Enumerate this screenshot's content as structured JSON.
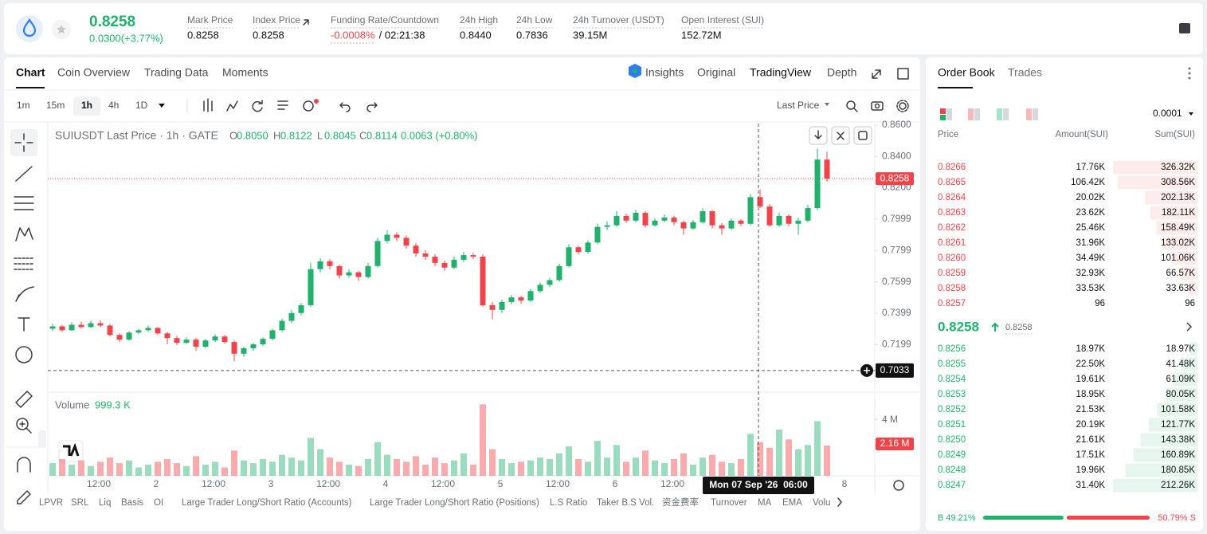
{
  "header": {
    "price": "0.8258",
    "change": "0.0300(+3.77%)",
    "stats": [
      {
        "label": "Mark Price",
        "value": "0.8258"
      },
      {
        "label": "Index Price",
        "value": "0.8258"
      },
      {
        "label": "Funding Rate/Countdown",
        "value": "-0.0008%",
        "extra": "/ 02:21:38"
      },
      {
        "label": "24h High",
        "value": "0.8440"
      },
      {
        "label": "24h Low",
        "value": "0.7836"
      },
      {
        "label": "24h Turnover (USDT)",
        "value": "39.15M"
      },
      {
        "label": "Open Interest (SUI)",
        "value": "152.72M"
      }
    ]
  },
  "tabs": [
    "Chart",
    "Coin Overview",
    "Trading Data",
    "Moments"
  ],
  "view_tabs": [
    "Insights",
    "Original",
    "TradingView",
    "Depth"
  ],
  "intervals": [
    "1m",
    "15m",
    "1h",
    "4h",
    "1D"
  ],
  "price_type": "Last Price",
  "chart_data": {
    "type": "candlestick",
    "title": "SUIUSDT Last Price · 1h · GATE",
    "legend_ohlc": [
      [
        "O",
        "0.8050"
      ],
      [
        "H",
        "0.8122"
      ],
      [
        "L",
        "0.8045"
      ],
      [
        "C",
        "0.8114"
      ]
    ],
    "legend_change": "0.0063 (+0.80%)",
    "candles": [
      [
        0.73,
        0.733,
        0.7285,
        0.7315
      ],
      [
        0.7315,
        0.7325,
        0.728,
        0.729
      ],
      [
        0.729,
        0.734,
        0.7285,
        0.7325
      ],
      [
        0.7325,
        0.7345,
        0.73,
        0.731
      ],
      [
        0.731,
        0.735,
        0.7305,
        0.7335
      ],
      [
        0.7335,
        0.7355,
        0.731,
        0.732
      ],
      [
        0.732,
        0.733,
        0.725,
        0.726
      ],
      [
        0.726,
        0.727,
        0.7215,
        0.723
      ],
      [
        0.723,
        0.7285,
        0.7225,
        0.7275
      ],
      [
        0.7275,
        0.73,
        0.7265,
        0.729
      ],
      [
        0.729,
        0.732,
        0.728,
        0.7305
      ],
      [
        0.7305,
        0.731,
        0.726,
        0.727
      ],
      [
        0.727,
        0.728,
        0.72,
        0.724
      ],
      [
        0.724,
        0.7255,
        0.7195,
        0.721
      ],
      [
        0.721,
        0.7245,
        0.72,
        0.723
      ],
      [
        0.723,
        0.724,
        0.716,
        0.7185
      ],
      [
        0.7185,
        0.7235,
        0.7175,
        0.7225
      ],
      [
        0.7225,
        0.7265,
        0.7215,
        0.725
      ],
      [
        0.725,
        0.726,
        0.7205,
        0.7215
      ],
      [
        0.7215,
        0.7225,
        0.709,
        0.714
      ],
      [
        0.714,
        0.7185,
        0.712,
        0.7175
      ],
      [
        0.7175,
        0.721,
        0.716,
        0.72
      ],
      [
        0.72,
        0.7245,
        0.719,
        0.7235
      ],
      [
        0.7235,
        0.73,
        0.7225,
        0.729
      ],
      [
        0.729,
        0.7365,
        0.728,
        0.735
      ],
      [
        0.735,
        0.742,
        0.7335,
        0.74
      ],
      [
        0.74,
        0.7465,
        0.7385,
        0.745
      ],
      [
        0.745,
        0.772,
        0.744,
        0.768
      ],
      [
        0.768,
        0.775,
        0.766,
        0.773
      ],
      [
        0.773,
        0.7745,
        0.768,
        0.77
      ],
      [
        0.77,
        0.771,
        0.762,
        0.764
      ],
      [
        0.764,
        0.768,
        0.7625,
        0.766
      ],
      [
        0.766,
        0.767,
        0.7605,
        0.763
      ],
      [
        0.763,
        0.772,
        0.762,
        0.77
      ],
      [
        0.77,
        0.788,
        0.769,
        0.786
      ],
      [
        0.786,
        0.793,
        0.7845,
        0.79
      ],
      [
        0.79,
        0.7915,
        0.786,
        0.788
      ],
      [
        0.788,
        0.7895,
        0.781,
        0.783
      ],
      [
        0.783,
        0.7845,
        0.776,
        0.778
      ],
      [
        0.778,
        0.78,
        0.774,
        0.776
      ],
      [
        0.776,
        0.7775,
        0.77,
        0.772
      ],
      [
        0.772,
        0.7735,
        0.767,
        0.769
      ],
      [
        0.769,
        0.776,
        0.768,
        0.774
      ],
      [
        0.774,
        0.779,
        0.7725,
        0.777
      ],
      [
        0.777,
        0.7785,
        0.7745,
        0.776
      ],
      [
        0.776,
        0.7775,
        0.744,
        0.745
      ],
      [
        0.745,
        0.747,
        0.736,
        0.742
      ],
      [
        0.742,
        0.7485,
        0.74,
        0.747
      ],
      [
        0.747,
        0.7515,
        0.7455,
        0.75
      ],
      [
        0.75,
        0.751,
        0.746,
        0.748
      ],
      [
        0.748,
        0.7555,
        0.747,
        0.754
      ],
      [
        0.754,
        0.7595,
        0.753,
        0.758
      ],
      [
        0.758,
        0.7625,
        0.7565,
        0.761
      ],
      [
        0.761,
        0.7715,
        0.76,
        0.77
      ],
      [
        0.77,
        0.784,
        0.769,
        0.782
      ],
      [
        0.782,
        0.783,
        0.7775,
        0.779
      ],
      [
        0.779,
        0.7865,
        0.778,
        0.785
      ],
      [
        0.785,
        0.797,
        0.784,
        0.795
      ],
      [
        0.795,
        0.7985,
        0.793,
        0.796
      ],
      [
        0.796,
        0.805,
        0.795,
        0.802
      ],
      [
        0.802,
        0.8035,
        0.7975,
        0.799
      ],
      [
        0.799,
        0.806,
        0.798,
        0.804
      ],
      [
        0.804,
        0.805,
        0.7945,
        0.796
      ],
      [
        0.796,
        0.8005,
        0.795,
        0.799
      ],
      [
        0.799,
        0.803,
        0.798,
        0.801
      ],
      [
        0.801,
        0.802,
        0.796,
        0.798
      ],
      [
        0.798,
        0.799,
        0.79,
        0.794
      ],
      [
        0.794,
        0.7995,
        0.793,
        0.798
      ],
      [
        0.798,
        0.807,
        0.797,
        0.805
      ],
      [
        0.805,
        0.806,
        0.794,
        0.796
      ],
      [
        0.796,
        0.7975,
        0.79,
        0.794
      ],
      [
        0.794,
        0.8005,
        0.793,
        0.799
      ],
      [
        0.799,
        0.8,
        0.7955,
        0.797
      ],
      [
        0.797,
        0.816,
        0.796,
        0.814
      ],
      [
        0.814,
        0.819,
        0.807,
        0.808
      ],
      [
        0.808,
        0.8095,
        0.795,
        0.796
      ],
      [
        0.796,
        0.804,
        0.795,
        0.802
      ],
      [
        0.802,
        0.803,
        0.7955,
        0.797
      ],
      [
        0.797,
        0.801,
        0.79,
        0.799
      ],
      [
        0.799,
        0.809,
        0.798,
        0.807
      ],
      [
        0.807,
        0.845,
        0.806,
        0.838
      ],
      [
        0.838,
        0.843,
        0.824,
        0.8258
      ]
    ],
    "volume_title": "Volume",
    "volume_value": "999.3 K",
    "volumes": [
      0.9,
      1.2,
      0.8,
      1.1,
      0.7,
      1.0,
      1.3,
      0.9,
      1.1,
      0.6,
      0.8,
      1.0,
      1.2,
      0.9,
      0.7,
      1.4,
      0.8,
      1.0,
      0.6,
      1.8,
      1.1,
      0.9,
      1.2,
      1.0,
      1.5,
      1.3,
      1.1,
      2.7,
      1.9,
      1.3,
      1.0,
      0.8,
      0.7,
      1.2,
      2.4,
      1.5,
      1.2,
      1.0,
      1.4,
      0.8,
      1.3,
      0.9,
      1.1,
      1.6,
      0.8,
      5.1,
      1.9,
      1.2,
      0.9,
      1.0,
      1.1,
      1.3,
      1.2,
      1.6,
      2.1,
      1.2,
      1.0,
      2.5,
      1.3,
      2.2,
      1.0,
      1.3,
      1.8,
      1.1,
      0.9,
      1.2,
      1.6,
      0.8,
      1.3,
      1.5,
      1.0,
      0.9,
      1.2,
      3.0,
      2.4,
      2.0,
      3.3,
      2.6,
      1.9,
      2.2,
      3.9,
      2.16
    ],
    "last_volume_label": "2.16 M",
    "ylim": [
      0.6905,
      0.861
    ],
    "yticks": [
      {
        "value": 0.86,
        "label": "0.8600"
      },
      {
        "value": 0.84,
        "label": "0.8400"
      },
      {
        "value": 0.82,
        "label": "0.8200"
      },
      {
        "value": 0.7999,
        "label": "0.7999"
      },
      {
        "value": 0.7799,
        "label": "0.7799"
      },
      {
        "value": 0.7599,
        "label": "0.7599"
      },
      {
        "value": 0.7399,
        "label": "0.7399"
      },
      {
        "value": 0.7199,
        "label": "0.7199"
      }
    ],
    "vlim": [
      0,
      5.8
    ],
    "vticks": [
      {
        "value": 4,
        "label": "4 M"
      }
    ],
    "last_price": {
      "value": 0.8258,
      "label": "0.8258"
    },
    "crosshair": {
      "price": {
        "value": 0.7033,
        "label": "0.7033"
      },
      "time": "Mon 07 Sep '26  06:00"
    },
    "x_labels": [
      "12:00",
      "2",
      "12:00",
      "3",
      "12:00",
      "4",
      "12:00",
      "5",
      "12:00",
      "6",
      "12:00",
      null,
      null,
      "8"
    ],
    "colors": {
      "up": "#20b26c",
      "down": "#ef454a"
    }
  },
  "indicators": [
    "LPVR",
    "SRL",
    "Liq",
    "Basis",
    "OI",
    "Large Trader Long/Short Ratio (Accounts)",
    "Large Trader Long/Short Ratio (Positions)",
    "L.S Ratio",
    "Taker B.S Vol.",
    "资金费率",
    "Turnover",
    "MA",
    "EMA",
    "Volu"
  ],
  "order_book": {
    "tabs": [
      "Order Book",
      "Trades"
    ],
    "precision": "0.0001",
    "columns": [
      "Price",
      "Amount(SUI)",
      "Sum(SUI)"
    ],
    "asks": [
      [
        "0.8266",
        "17.76K",
        {
          "value": 326320,
          "label": "326.32K"
        }
      ],
      [
        "0.8265",
        "106.42K",
        {
          "value": 308560,
          "label": "308.56K"
        }
      ],
      [
        "0.8264",
        "20.02K",
        {
          "value": 202130,
          "label": "202.13K"
        }
      ],
      [
        "0.8263",
        "23.62K",
        {
          "value": 182110,
          "label": "182.11K"
        }
      ],
      [
        "0.8262",
        "25.46K",
        {
          "value": 158490,
          "label": "158.49K"
        }
      ],
      [
        "0.8261",
        "31.96K",
        {
          "value": 133020,
          "label": "133.02K"
        }
      ],
      [
        "0.8260",
        "34.49K",
        {
          "value": 101060,
          "label": "101.06K"
        }
      ],
      [
        "0.8259",
        "32.93K",
        {
          "value": 66570,
          "label": "66.57K"
        }
      ],
      [
        "0.8258",
        "33.53K",
        {
          "value": 33630,
          "label": "33.63K"
        }
      ],
      [
        "0.8257",
        "96",
        96
      ]
    ],
    "mid_price": "0.8258",
    "mark_price": "0.8258",
    "bids": [
      [
        "0.8256",
        "18.97K",
        {
          "value": 18970,
          "label": "18.97K"
        }
      ],
      [
        "0.8255",
        "22.50K",
        {
          "value": 41480,
          "label": "41.48K"
        }
      ],
      [
        "0.8254",
        "19.61K",
        {
          "value": 61090,
          "label": "61.09K"
        }
      ],
      [
        "0.8253",
        "18.95K",
        {
          "value": 80050,
          "label": "80.05K"
        }
      ],
      [
        "0.8252",
        "21.53K",
        {
          "value": 101580,
          "label": "101.58K"
        }
      ],
      [
        "0.8251",
        "20.19K",
        {
          "value": 121770,
          "label": "121.77K"
        }
      ],
      [
        "0.8250",
        "21.61K",
        {
          "value": 143380,
          "label": "143.38K"
        }
      ],
      [
        "0.8249",
        "17.51K",
        {
          "value": 160890,
          "label": "160.89K"
        }
      ],
      [
        "0.8248",
        "19.96K",
        {
          "value": 180850,
          "label": "180.85K"
        }
      ],
      [
        "0.8247",
        "31.40K",
        {
          "value": 212260,
          "label": "212.26K"
        }
      ]
    ],
    "ratio": {
      "buy": {
        "value": 49.21,
        "label": "B 49.21%"
      },
      "sell": {
        "value": 50.79,
        "label": "50.79% S"
      }
    }
  }
}
